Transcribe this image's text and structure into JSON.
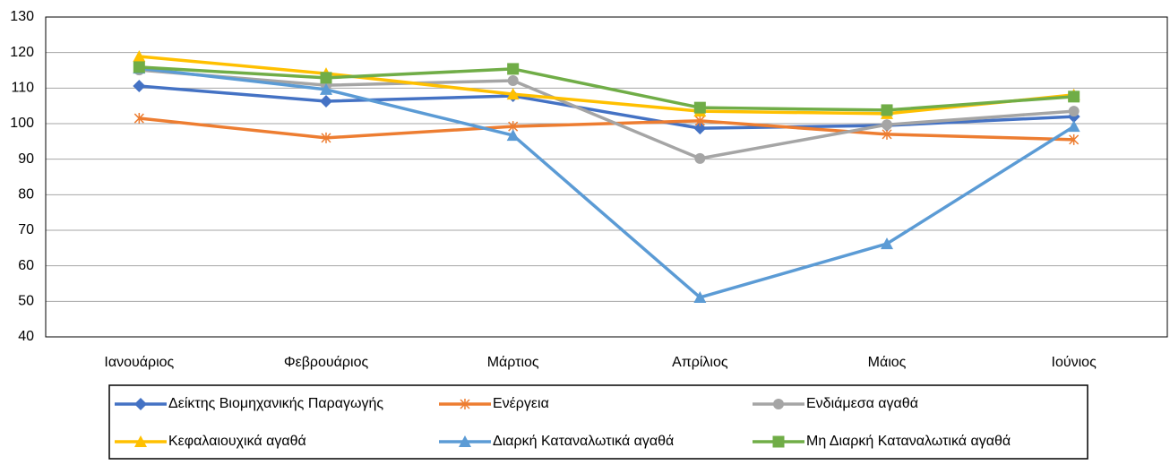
{
  "chart_data": {
    "type": "line",
    "categories": [
      "Ιανουάριος",
      "Φεβρουάριος",
      "Μάρτιος",
      "Απρίλιος",
      "Μάιος",
      "Ιούνιος"
    ],
    "series": [
      {
        "name": "Δείκτης Βιομηχανικής Παραγωγής",
        "color": "#4472C4",
        "marker": "diamond",
        "values": [
          110.6,
          106.3,
          107.8,
          98.7,
          99.5,
          102.0
        ]
      },
      {
        "name": "Ενέργεια",
        "color": "#ED7D31",
        "marker": "star",
        "values": [
          101.5,
          96.0,
          99.2,
          100.8,
          97.0,
          95.5
        ]
      },
      {
        "name": "Ενδιάμεσα αγαθά",
        "color": "#A5A5A5",
        "marker": "circle",
        "values": [
          115.1,
          110.8,
          112.1,
          90.2,
          99.7,
          103.5
        ]
      },
      {
        "name": "Κεφαλαιουχικά αγαθά",
        "color": "#FFC000",
        "marker": "triangle",
        "values": [
          118.9,
          114.1,
          108.3,
          103.5,
          102.8,
          108.1
        ]
      },
      {
        "name": "Διαρκή Καταναλωτικά αγαθά",
        "color": "#5B9BD5",
        "marker": "triangle",
        "values": [
          115.6,
          109.6,
          96.7,
          51.1,
          66.2,
          99.2
        ]
      },
      {
        "name": "Μη Διαρκή Καταναλωτικά αγαθά",
        "color": "#70AD47",
        "marker": "square",
        "values": [
          115.9,
          112.9,
          115.4,
          104.5,
          103.8,
          107.6
        ]
      }
    ],
    "ylim": [
      40,
      130
    ],
    "yticks": [
      40,
      50,
      60,
      70,
      80,
      90,
      100,
      110,
      120,
      130
    ],
    "grid": true,
    "legend": "bottom"
  }
}
